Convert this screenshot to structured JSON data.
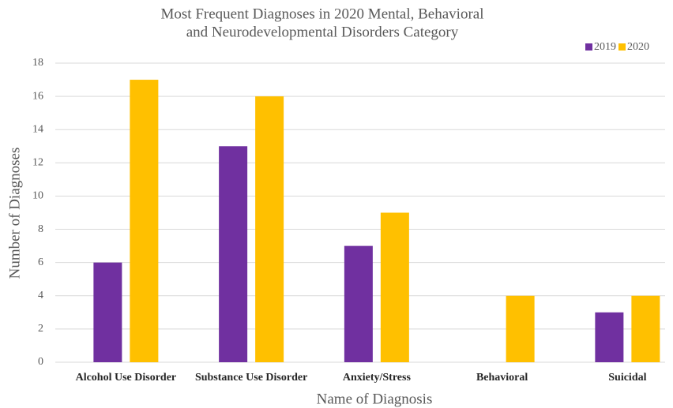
{
  "chart_data": {
    "type": "bar",
    "title": [
      "Most Frequent Diagnoses in 2020 Mental, Behavioral",
      "and Neurodevelopmental Disorders Category"
    ],
    "x_label": "Name of Diagnosis",
    "y_label": "Number of Diagnoses",
    "categories": [
      "Alcohol Use Disorder",
      "Substance Use Disorder",
      "Anxiety/Stress",
      "Behavioral",
      "Suicidal"
    ],
    "series": [
      {
        "name": "2019",
        "color": "#7030a0",
        "values": [
          6,
          13,
          7,
          0,
          3
        ]
      },
      {
        "name": "2020",
        "color": "#ffc000",
        "values": [
          17,
          16,
          9,
          4,
          4
        ]
      }
    ],
    "ylim": [
      0,
      18
    ],
    "yticks": [
      0,
      2,
      4,
      6,
      8,
      10,
      12,
      14,
      16,
      18
    ],
    "grid": true,
    "legend": "top-right"
  }
}
